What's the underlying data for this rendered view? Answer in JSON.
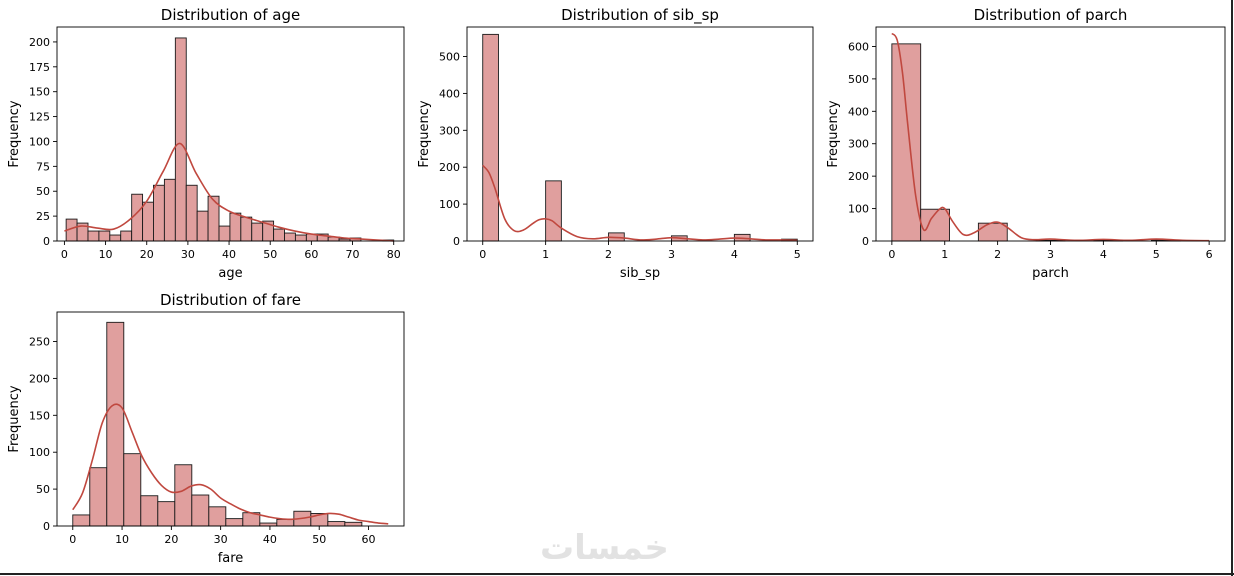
{
  "colors": {
    "bar_fill": "#e09f9e",
    "bar_edge": "#1a1a1a",
    "kde": "#c0483f",
    "axis": "#000000"
  },
  "watermark": "خمسات",
  "chart_data": [
    {
      "type": "bar",
      "title": "Distribution of age",
      "xlabel": "age",
      "ylabel": "Frequency",
      "xlim": [
        -1.8,
        82.5
      ],
      "ylim": [
        0,
        215
      ],
      "xticks": [
        0,
        10,
        20,
        30,
        40,
        50,
        60,
        70,
        80
      ],
      "yticks": [
        0,
        25,
        50,
        75,
        100,
        125,
        150,
        175,
        200
      ],
      "bin_edges": [
        0.42,
        3.07,
        5.73,
        8.38,
        11.03,
        13.68,
        16.34,
        18.99,
        21.64,
        24.29,
        26.95,
        29.6,
        32.25,
        34.9,
        37.56,
        40.21,
        42.86,
        45.51,
        48.17,
        50.82,
        53.47,
        56.12,
        58.78,
        61.43,
        64.08,
        66.73,
        69.39,
        72.04,
        74.69,
        77.34,
        80.0
      ],
      "values": [
        22,
        18,
        10,
        10,
        6,
        10,
        47,
        39,
        56,
        62,
        204,
        56,
        30,
        45,
        15,
        28,
        24,
        18,
        20,
        12,
        8,
        6,
        7,
        7,
        4,
        2,
        3,
        0,
        0,
        1
      ],
      "kde": {
        "x": [
          0,
          4,
          8,
          12,
          16,
          20,
          24,
          28,
          32,
          36,
          40,
          44,
          48,
          52,
          56,
          60,
          64,
          68,
          72,
          76,
          80
        ],
        "y": [
          10,
          15,
          13,
          12,
          22,
          40,
          70,
          98,
          68,
          42,
          30,
          24,
          19,
          14,
          10,
          7,
          5,
          3,
          2,
          1,
          0
        ]
      }
    },
    {
      "type": "bar",
      "title": "Distribution of sib_sp",
      "xlabel": "sib_sp",
      "ylabel": "Frequency",
      "xlim": [
        -0.25,
        5.25
      ],
      "ylim": [
        0,
        580
      ],
      "xticks": [
        0,
        1,
        2,
        3,
        4,
        5
      ],
      "yticks": [
        0,
        100,
        200,
        300,
        400,
        500
      ],
      "bin_edges": [
        0,
        0.25,
        0.5,
        0.75,
        1.0,
        1.25,
        1.5,
        1.75,
        2.0,
        2.25,
        2.5,
        2.75,
        3.0,
        3.25,
        3.5,
        3.75,
        4.0,
        4.25,
        4.5,
        4.75,
        5.0
      ],
      "values": [
        560,
        0,
        0,
        0,
        163,
        0,
        0,
        0,
        22,
        0,
        0,
        0,
        14,
        0,
        0,
        0,
        18,
        0,
        0,
        5
      ],
      "kde": {
        "x": [
          0,
          0.1,
          0.2,
          0.35,
          0.5,
          0.65,
          0.8,
          0.9,
          1.0,
          1.1,
          1.25,
          1.5,
          1.75,
          2.0,
          2.25,
          2.5,
          2.75,
          3.0,
          3.25,
          3.5,
          3.75,
          4.0,
          4.25,
          4.5,
          4.75,
          5.0
        ],
        "y": [
          205,
          185,
          140,
          60,
          28,
          30,
          48,
          58,
          60,
          55,
          35,
          12,
          6,
          10,
          8,
          3,
          5,
          9,
          6,
          3,
          5,
          8,
          6,
          3,
          3,
          2
        ]
      }
    },
    {
      "type": "bar",
      "title": "Distribution of parch",
      "xlabel": "parch",
      "ylabel": "Frequency",
      "xlim": [
        -0.3,
        6.3
      ],
      "ylim": [
        0,
        660
      ],
      "xticks": [
        0,
        1,
        2,
        3,
        4,
        5,
        6
      ],
      "yticks": [
        0,
        100,
        200,
        300,
        400,
        500,
        600
      ],
      "bin_edges": [
        0,
        0.545,
        1.09,
        1.636,
        2.182,
        2.727,
        3.273,
        3.818,
        4.364,
        4.909,
        5.455,
        6.0
      ],
      "values": [
        608,
        98,
        0,
        55,
        0,
        2,
        0,
        2,
        0,
        3,
        0
      ],
      "kde": {
        "x": [
          0,
          0.1,
          0.2,
          0.3,
          0.45,
          0.6,
          0.75,
          0.9,
          1.0,
          1.15,
          1.35,
          1.55,
          1.8,
          2.0,
          2.2,
          2.45,
          2.7,
          3.0,
          3.5,
          4.0,
          4.5,
          5.0,
          5.5,
          6.0
        ],
        "y": [
          640,
          620,
          520,
          360,
          140,
          35,
          70,
          98,
          100,
          60,
          20,
          25,
          50,
          58,
          40,
          10,
          4,
          6,
          2,
          5,
          2,
          6,
          2,
          1
        ]
      }
    },
    {
      "type": "bar",
      "title": "Distribution of fare",
      "xlabel": "fare",
      "ylabel": "Frequency",
      "xlim": [
        -3.2,
        67.2
      ],
      "ylim": [
        0,
        290
      ],
      "xticks": [
        0,
        10,
        20,
        30,
        40,
        50,
        60
      ],
      "yticks": [
        0,
        50,
        100,
        150,
        200,
        250
      ],
      "bin_edges": [
        0,
        3.45,
        6.9,
        10.35,
        13.8,
        17.25,
        20.7,
        24.15,
        27.6,
        31.05,
        34.5,
        37.95,
        41.4,
        44.85,
        48.3,
        51.75,
        55.2,
        58.65,
        62.1,
        65.55
      ],
      "values": [
        15,
        79,
        276,
        98,
        41,
        33,
        83,
        42,
        26,
        10,
        18,
        4,
        9,
        20,
        17,
        6,
        5,
        0,
        0
      ],
      "kde": {
        "x": [
          0,
          2,
          4,
          6,
          8,
          10,
          12,
          14,
          16,
          18,
          20,
          22,
          24,
          26,
          28,
          30,
          32,
          34,
          36,
          38,
          40,
          42,
          44,
          46,
          48,
          50,
          52,
          54,
          56,
          58,
          60,
          62,
          64
        ],
        "y": [
          22,
          45,
          90,
          140,
          163,
          160,
          128,
          95,
          72,
          55,
          46,
          47,
          54,
          56,
          50,
          38,
          30,
          23,
          18,
          15,
          12,
          10,
          9,
          10,
          12,
          15,
          17,
          16,
          12,
          8,
          6,
          4,
          3
        ]
      }
    }
  ]
}
